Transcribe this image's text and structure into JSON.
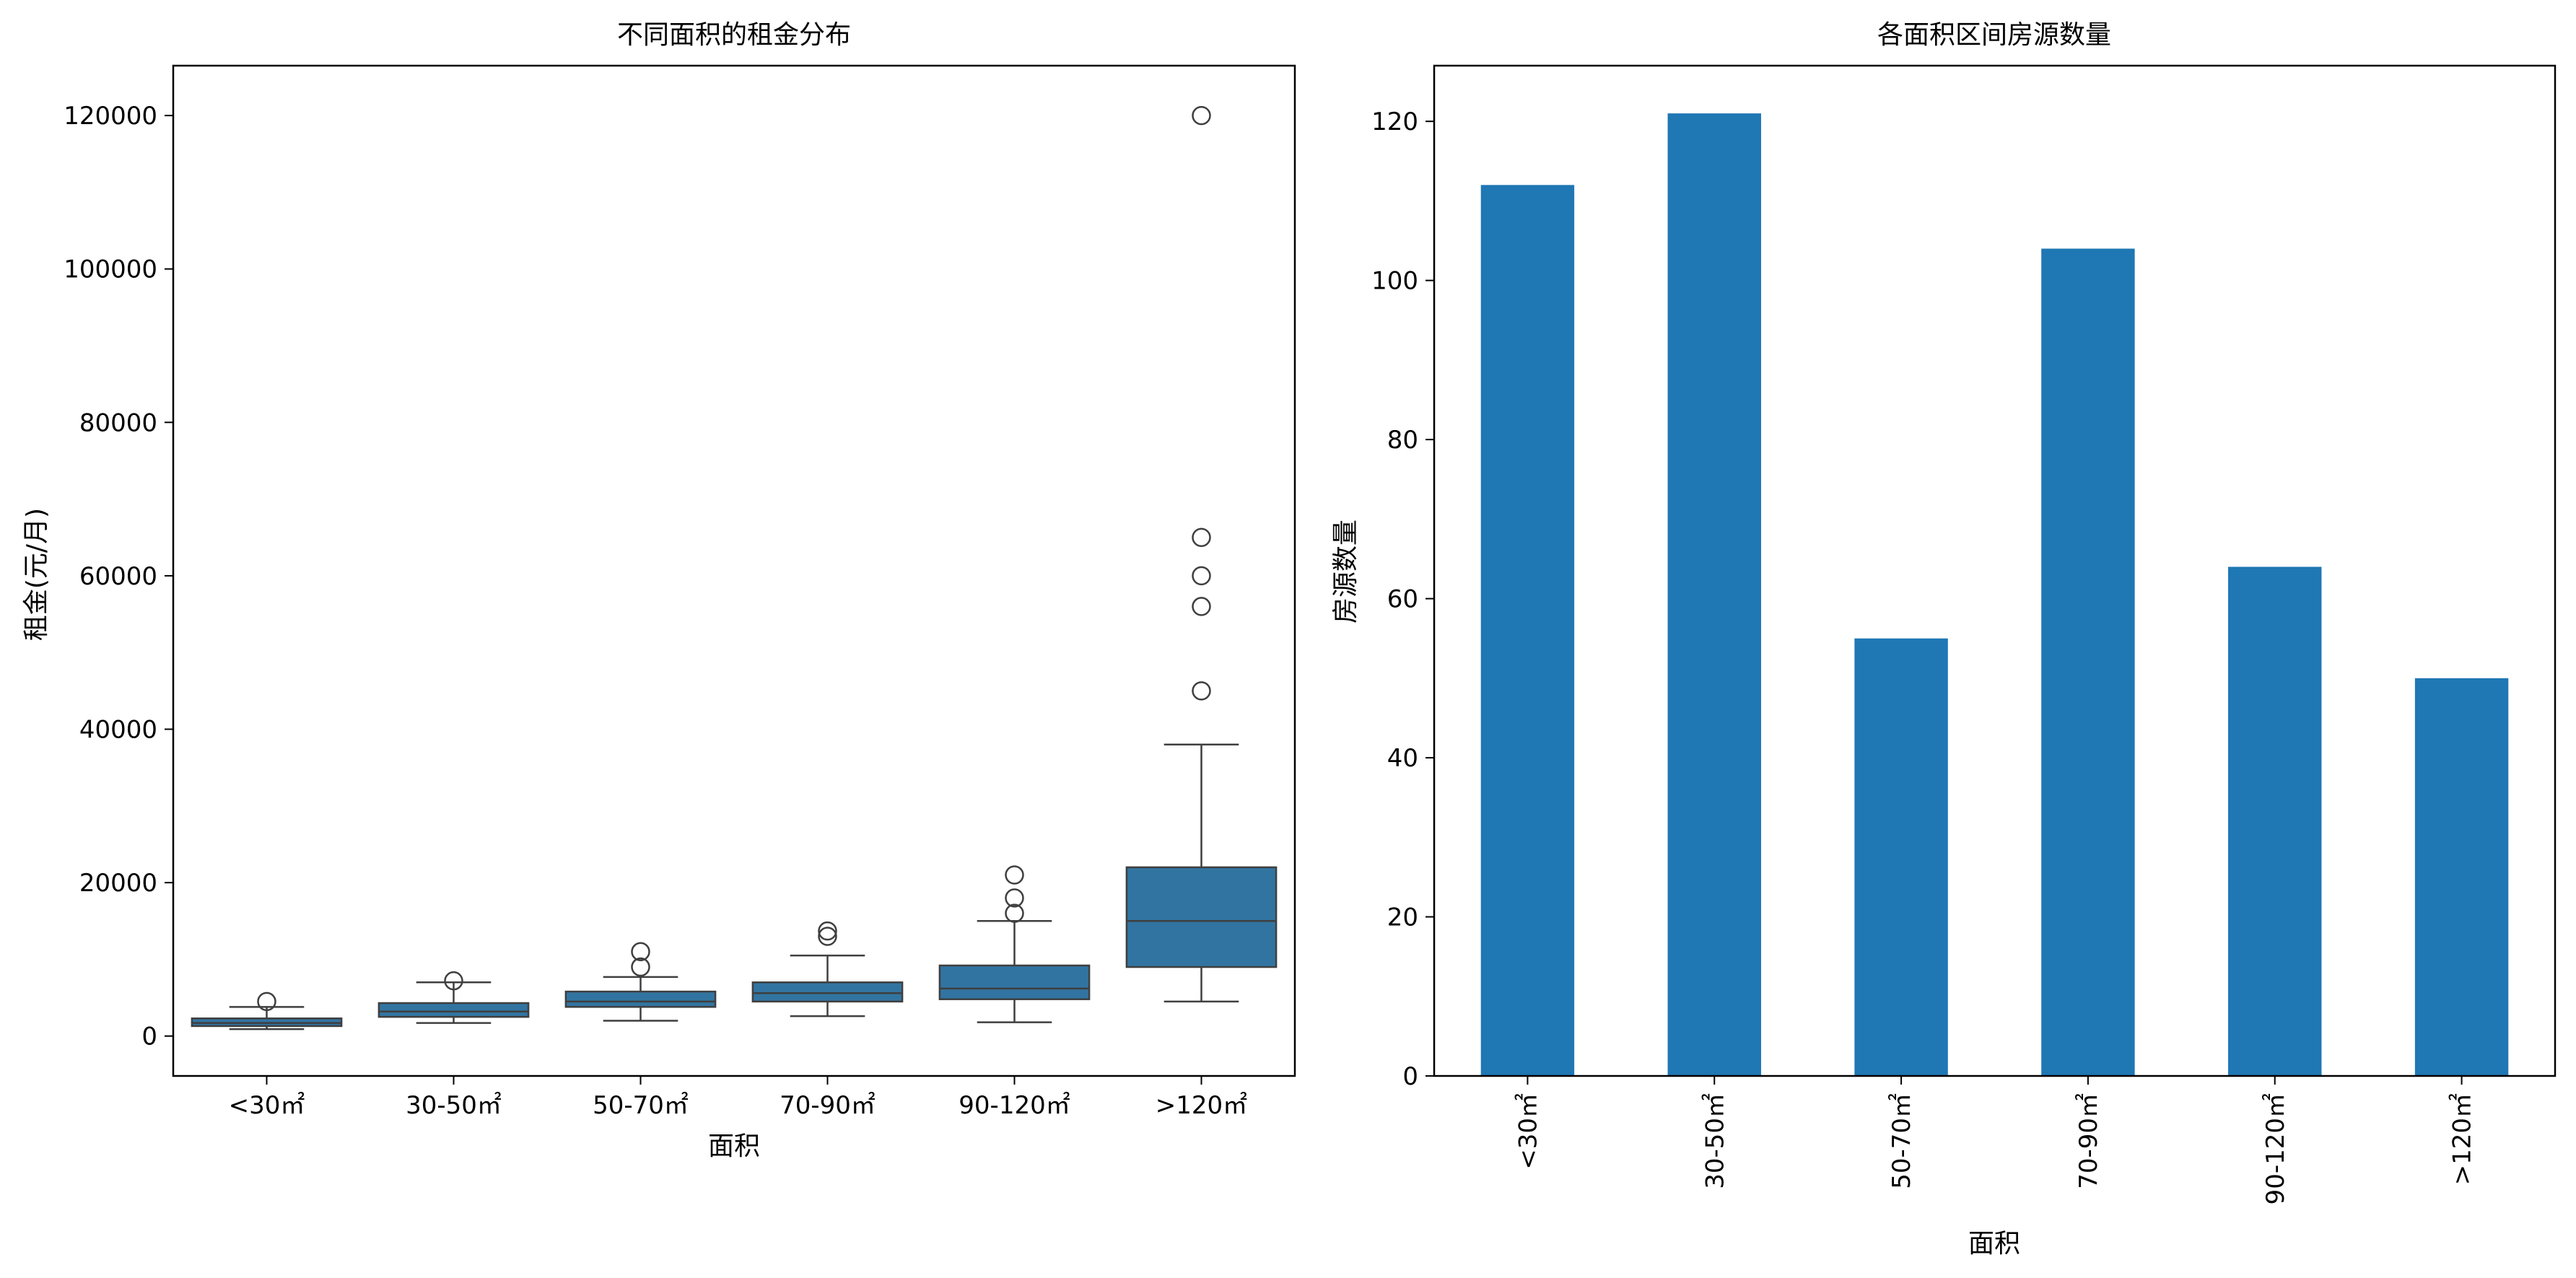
{
  "colors": {
    "box_fill": "#3274a1",
    "box_line": "#3f3f3f",
    "bar_fill": "#1f77b4",
    "axis": "#000000"
  },
  "chart_data": [
    {
      "type": "box",
      "title": "不同面积的租金分布",
      "xlabel": "面积",
      "ylabel": "租金(元/月)",
      "categories": [
        "<30㎡",
        "30-50㎡",
        "50-70㎡",
        "70-90㎡",
        "90-120㎡",
        ">120㎡"
      ],
      "ylim": [
        -5200,
        126500
      ],
      "yticks": [
        0,
        20000,
        40000,
        60000,
        80000,
        100000,
        120000
      ],
      "boxes": [
        {
          "whislo": 900,
          "q1": 1300,
          "med": 1700,
          "q3": 2300,
          "whishi": 3800,
          "fliers": [
            4500
          ]
        },
        {
          "whislo": 1700,
          "q1": 2500,
          "med": 3200,
          "q3": 4300,
          "whishi": 7000,
          "fliers": [
            7200
          ]
        },
        {
          "whislo": 2000,
          "q1": 3800,
          "med": 4500,
          "q3": 5800,
          "whishi": 7700,
          "fliers": [
            9000,
            11000
          ]
        },
        {
          "whislo": 2600,
          "q1": 4500,
          "med": 5600,
          "q3": 7000,
          "whishi": 10500,
          "fliers": [
            13000,
            13700
          ]
        },
        {
          "whislo": 1800,
          "q1": 4800,
          "med": 6200,
          "q3": 9200,
          "whishi": 15000,
          "fliers": [
            16000,
            18000,
            21000
          ]
        },
        {
          "whislo": 4500,
          "q1": 9000,
          "med": 15000,
          "q3": 22000,
          "whishi": 38000,
          "fliers": [
            45000,
            56000,
            60000,
            65000,
            120000
          ]
        }
      ]
    },
    {
      "type": "bar",
      "title": "各面积区间房源数量",
      "xlabel": "面积",
      "ylabel": "房源数量",
      "categories": [
        "<30㎡",
        "30-50㎡",
        "50-70㎡",
        "70-90㎡",
        "90-120㎡",
        ">120㎡"
      ],
      "values": [
        112,
        121,
        55,
        104,
        64,
        50
      ],
      "ylim": [
        0,
        127
      ],
      "yticks": [
        0,
        20,
        40,
        60,
        80,
        100,
        120
      ]
    }
  ]
}
